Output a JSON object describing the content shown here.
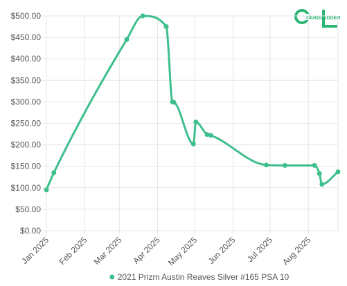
{
  "logo": {
    "text": "CARDLADDER",
    "color": "#2bb673"
  },
  "chart_data": {
    "type": "line",
    "title": "",
    "xlabel": "",
    "ylabel": "",
    "y_ticks": [
      "$0.00",
      "$50.00",
      "$100.00",
      "$150.00",
      "$200.00",
      "$250.00",
      "$300.00",
      "$350.00",
      "$400.00",
      "$450.00",
      "$500.00"
    ],
    "x_ticks": [
      "Jan 2025",
      "Feb 2025",
      "Mar 2025",
      "Apr 2025",
      "May 2025",
      "Jun 2025",
      "Jul 2025",
      "Aug 2025"
    ],
    "x_tick_dates": [
      "2025-01-01",
      "2025-02-01",
      "2025-03-01",
      "2025-04-01",
      "2025-05-01",
      "2025-06-01",
      "2025-07-01",
      "2025-08-01"
    ],
    "xlim": [
      "2025-01-01",
      "2025-08-25"
    ],
    "ylim": [
      0,
      500
    ],
    "grid": true,
    "legend_position": "bottom",
    "series": [
      {
        "name": "2021 Prizm Austin Reaves Silver #165 PSA 10",
        "color": "#3dbf8c",
        "points": [
          {
            "x": "2025-01-01",
            "y": 95
          },
          {
            "x": "2025-01-07",
            "y": 135
          },
          {
            "x": "2025-03-07",
            "y": 445
          },
          {
            "x": "2025-03-20",
            "y": 500
          },
          {
            "x": "2025-04-08",
            "y": 475
          },
          {
            "x": "2025-04-13",
            "y": 300
          },
          {
            "x": "2025-04-14",
            "y": 299
          },
          {
            "x": "2025-04-30",
            "y": 202
          },
          {
            "x": "2025-05-02",
            "y": 253
          },
          {
            "x": "2025-05-11",
            "y": 224
          },
          {
            "x": "2025-05-14",
            "y": 222
          },
          {
            "x": "2025-06-28",
            "y": 153
          },
          {
            "x": "2025-07-13",
            "y": 152
          },
          {
            "x": "2025-08-06",
            "y": 152
          },
          {
            "x": "2025-08-10",
            "y": 133
          },
          {
            "x": "2025-08-12",
            "y": 108
          },
          {
            "x": "2025-08-25",
            "y": 137
          }
        ]
      }
    ]
  }
}
